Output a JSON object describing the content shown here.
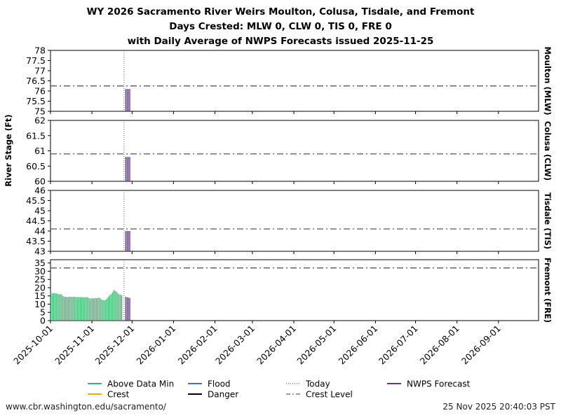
{
  "title_lines": [
    "WY 2026 Sacramento River Weirs Moulton, Colusa, Tisdale, and Fremont",
    "Days Crested: MLW 0, CLW 0, TIS 0, FRE 0",
    "with Daily Average of NWPS Forecasts issued 2025-11-25"
  ],
  "footer": {
    "url": "www.cbr.washington.edu/sacramento/",
    "timestamp": "25 Nov 2025 20:40:03 PST"
  },
  "legend": [
    {
      "label": "Above Data Min",
      "color": "#3cb371",
      "style": "solid"
    },
    {
      "label": "Crest",
      "color": "#ffa500",
      "style": "solid"
    },
    {
      "label": "Flood",
      "color": "#4169e1",
      "style": "solid"
    },
    {
      "label": "Danger",
      "color": "#000000",
      "style": "solid"
    },
    {
      "label": "Today",
      "color": "#555555",
      "style": "dotted"
    },
    {
      "label": "Crest Level",
      "color": "#666666",
      "style": "dashdot"
    },
    {
      "label": "NWPS Forecast",
      "color": "#663399",
      "style": "solid"
    }
  ],
  "chart_data": {
    "type": "bar",
    "ylabel": "River Stage (Ft)",
    "x_range": [
      "2025-10-01",
      "2026-09-30"
    ],
    "x_ticks": [
      "2025-10-01",
      "2025-11-01",
      "2025-12-01",
      "2026-01-01",
      "2026-02-01",
      "2026-03-01",
      "2026-04-01",
      "2026-05-01",
      "2026-06-01",
      "2026-07-01",
      "2026-08-01",
      "2026-09-01"
    ],
    "today": "2025-11-25",
    "grid": false,
    "legend_position": "bottom",
    "panels": [
      {
        "name": "Moulton (MLW)",
        "ylim": [
          75,
          78
        ],
        "yticks": [
          "75",
          "75.5",
          "76",
          "76.5",
          "77",
          "77.5",
          "78"
        ],
        "crest_level": 76.25,
        "observed": {
          "start": "2025-10-01",
          "values": []
        },
        "forecast": {
          "start": "2025-11-26",
          "values": [
            76.1,
            76.1,
            76.1,
            76.1
          ]
        }
      },
      {
        "name": "Colusa (CLW)",
        "ylim": [
          60,
          62
        ],
        "yticks": [
          "60",
          "60.5",
          "61",
          "61.5",
          "62"
        ],
        "crest_level": 60.9,
        "observed": {
          "start": "2025-10-01",
          "values": []
        },
        "forecast": {
          "start": "2025-11-26",
          "values": [
            60.8,
            60.8,
            60.8,
            60.8
          ]
        }
      },
      {
        "name": "Tisdale (TIS)",
        "ylim": [
          43,
          46
        ],
        "yticks": [
          "43",
          "43.5",
          "44",
          "44.5",
          "45",
          "45.5",
          "46"
        ],
        "crest_level": 44.1,
        "observed": {
          "start": "2025-10-01",
          "values": []
        },
        "forecast": {
          "start": "2025-11-26",
          "values": [
            44.0,
            44.0,
            44.0,
            44.0
          ]
        }
      },
      {
        "name": "Fremont (FRE)",
        "ylim": [
          0,
          37
        ],
        "yticks": [
          "0",
          "5",
          "10",
          "15",
          "20",
          "25",
          "30",
          "35"
        ],
        "crest_level": 32,
        "observed": {
          "start": "2025-10-01",
          "values": [
            16.5,
            16.5,
            16.8,
            16.7,
            16.5,
            16.2,
            16.0,
            16.0,
            15.8,
            15.0,
            14.5,
            14.5,
            14.3,
            14.4,
            14.6,
            14.5,
            14.3,
            14.5,
            14.4,
            14.3,
            14.2,
            14.3,
            14.3,
            14.2,
            14.3,
            14.1,
            14.2,
            14.3,
            14.0,
            13.5,
            13.4,
            13.6,
            13.5,
            13.7,
            13.6,
            13.8,
            14.0,
            13.5,
            12.8,
            12.5,
            12.4,
            12.6,
            13.5,
            14.5,
            15.3,
            16.0,
            17.0,
            18.5,
            18.2,
            17.5,
            16.8,
            16.0,
            15.7,
            15.5
          ]
        },
        "forecast": {
          "start": "2025-11-26",
          "values": [
            14.5,
            14.2,
            14.0,
            13.8
          ]
        }
      }
    ]
  }
}
